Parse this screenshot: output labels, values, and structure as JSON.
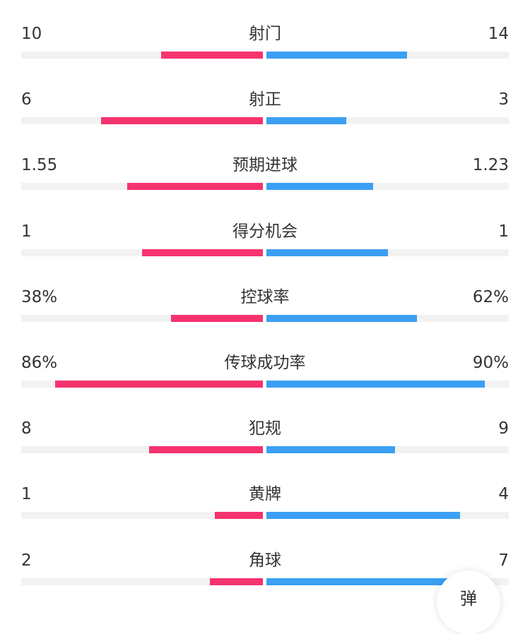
{
  "colors": {
    "home": "#f5336f",
    "away": "#3b9ff3",
    "track": "#f2f2f2",
    "text": "#333333"
  },
  "stats": [
    {
      "label": "射门",
      "home": "10",
      "away": "14",
      "home_ratio": 0.42,
      "away_ratio": 0.58
    },
    {
      "label": "射正",
      "home": "6",
      "away": "3",
      "home_ratio": 0.67,
      "away_ratio": 0.33
    },
    {
      "label": "预期进球",
      "home": "1.55",
      "away": "1.23",
      "home_ratio": 0.56,
      "away_ratio": 0.44
    },
    {
      "label": "得分机会",
      "home": "1",
      "away": "1",
      "home_ratio": 0.5,
      "away_ratio": 0.5
    },
    {
      "label": "控球率",
      "home": "38%",
      "away": "62%",
      "home_ratio": 0.38,
      "away_ratio": 0.62
    },
    {
      "label": "传球成功率",
      "home": "86%",
      "away": "90%",
      "home_ratio": 0.86,
      "away_ratio": 0.9
    },
    {
      "label": "犯规",
      "home": "8",
      "away": "9",
      "home_ratio": 0.47,
      "away_ratio": 0.53
    },
    {
      "label": "黄牌",
      "home": "1",
      "away": "4",
      "home_ratio": 0.2,
      "away_ratio": 0.8
    },
    {
      "label": "角球",
      "home": "2",
      "away": "7",
      "home_ratio": 0.22,
      "away_ratio": 0.78
    }
  ],
  "float_button": {
    "label": "弹"
  }
}
